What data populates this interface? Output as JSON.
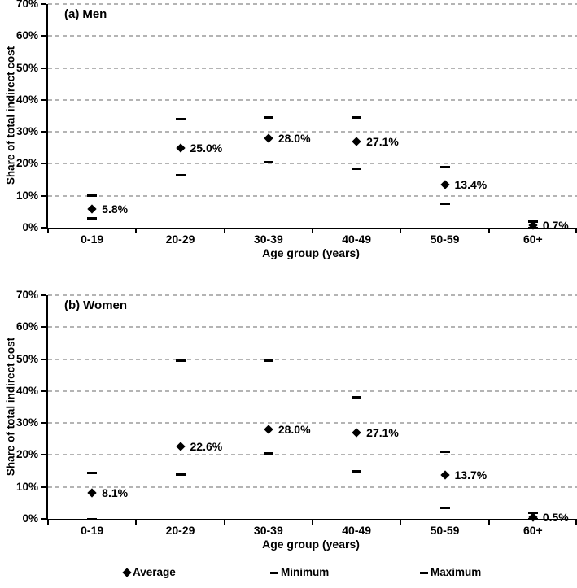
{
  "chart_data": [
    {
      "type": "scatter",
      "panel_label": "(a)",
      "panel_title": "Men",
      "categories": [
        "0-19",
        "20-29",
        "30-39",
        "40-49",
        "50-59",
        "60+"
      ],
      "xlabel": "Age group (years)",
      "ylabel": "Share of total indirect cost",
      "ylim": [
        0,
        70
      ],
      "ytick_step": 10,
      "ytick_labels": [
        "0%",
        "10%",
        "20%",
        "30%",
        "40%",
        "50%",
        "60%",
        "70%"
      ],
      "grid": "horizontal-dashed",
      "legend_position": "bottom",
      "series": [
        {
          "name": "Average",
          "marker": "diamond",
          "values": [
            5.8,
            25.0,
            28.0,
            27.1,
            13.4,
            0.7
          ],
          "labels": [
            "5.8%",
            "25.0%",
            "28.0%",
            "27.1%",
            "13.4%",
            "0.7%"
          ]
        },
        {
          "name": "Minimum",
          "marker": "dash",
          "values": [
            3.0,
            16.5,
            20.5,
            18.5,
            7.5,
            0.0
          ]
        },
        {
          "name": "Maximum",
          "marker": "dash",
          "values": [
            10.0,
            34.0,
            34.5,
            34.5,
            19.0,
            2.0
          ]
        }
      ]
    },
    {
      "type": "scatter",
      "panel_label": "(b)",
      "panel_title": "Women",
      "categories": [
        "0-19",
        "20-29",
        "30-39",
        "40-49",
        "50-59",
        "60+"
      ],
      "xlabel": "Age group (years)",
      "ylabel": "Share of total indirect cost",
      "ylim": [
        0,
        70
      ],
      "ytick_step": 10,
      "ytick_labels": [
        "0%",
        "10%",
        "20%",
        "30%",
        "40%",
        "50%",
        "60%",
        "70%"
      ],
      "grid": "horizontal-dashed",
      "legend_position": "bottom",
      "series": [
        {
          "name": "Average",
          "marker": "diamond",
          "values": [
            8.1,
            22.6,
            28.0,
            27.1,
            13.7,
            0.5
          ],
          "labels": [
            "8.1%",
            "22.6%",
            "28.0%",
            "27.1%",
            "13.7%",
            "0.5%"
          ]
        },
        {
          "name": "Minimum",
          "marker": "dash",
          "values": [
            0.0,
            14.0,
            20.5,
            15.0,
            3.5,
            0.0
          ]
        },
        {
          "name": "Maximum",
          "marker": "dash",
          "values": [
            14.5,
            49.5,
            49.5,
            38.0,
            21.0,
            2.0
          ]
        }
      ]
    }
  ],
  "legend": {
    "items": [
      {
        "marker": "diamond",
        "label": "Average"
      },
      {
        "marker": "dash",
        "label": "Minimum"
      },
      {
        "marker": "dash",
        "label": "Maximum"
      }
    ]
  },
  "colors": {
    "marker": "#000000",
    "gridline": "#b4b4b4",
    "background": "#ffffff"
  }
}
